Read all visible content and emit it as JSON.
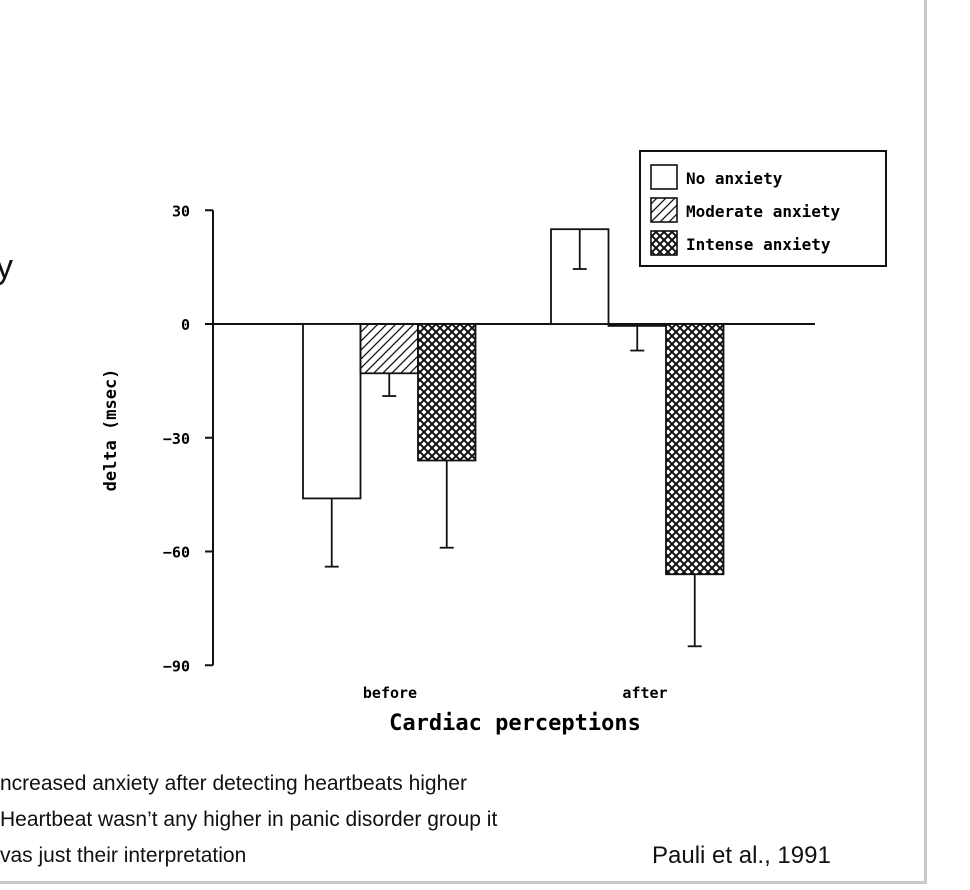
{
  "slide": {
    "title_fragment": "y",
    "bullets": [
      "ncreased anxiety after detecting heartbeats higher",
      "Heartbeat wasn’t any higher in panic disorder group it",
      "vas just their interpretation"
    ],
    "citation": "Pauli et al., 1991"
  },
  "chart_data": {
    "type": "bar",
    "title": "",
    "xlabel": "Cardiac perceptions",
    "ylabel": "delta (msec)",
    "categories": [
      "before",
      "after"
    ],
    "ylim": [
      -90,
      30
    ],
    "yticks": [
      30,
      0,
      -30,
      -60,
      -90
    ],
    "ytick_labels": [
      "30",
      "0",
      "−30",
      "−60",
      "−90"
    ],
    "grid": false,
    "legend_position": "top-right",
    "error_bars": true,
    "series": [
      {
        "name": "No anxiety",
        "pattern": "none",
        "values": [
          -46,
          25
        ],
        "error": [
          18,
          10.5
        ]
      },
      {
        "name": "Moderate anxiety",
        "pattern": "diagonal-hatch",
        "values": [
          -13,
          -0.5
        ],
        "error": [
          6,
          6.5
        ]
      },
      {
        "name": "Intense anxiety",
        "pattern": "cross-hatch",
        "values": [
          -36,
          -66
        ],
        "error": [
          23,
          19
        ]
      }
    ]
  },
  "colors": {
    "ink": "#111111",
    "frame": "#c8c8c8",
    "background": "#ffffff"
  }
}
